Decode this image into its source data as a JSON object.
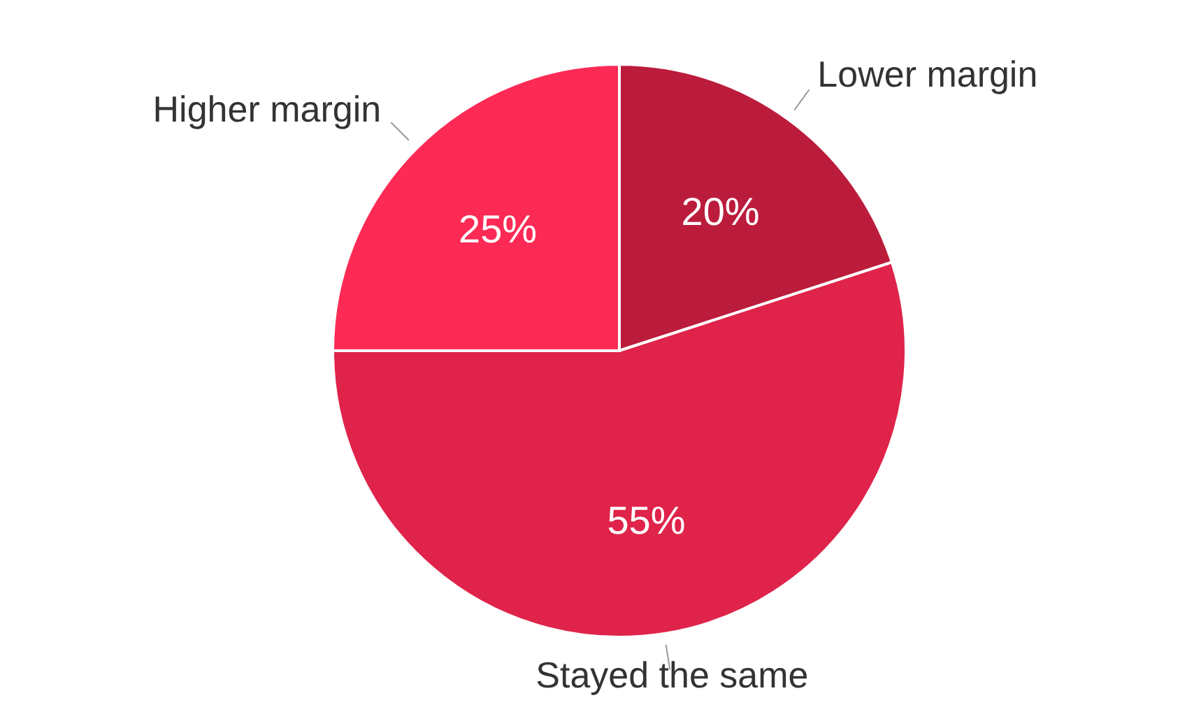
{
  "chart_data": {
    "type": "pie",
    "categories": [
      "Lower margin",
      "Stayed the same",
      "Higher margin"
    ],
    "values": [
      20,
      55,
      25
    ],
    "colors": [
      "#bc1c3c",
      "#e0234a",
      "#fc2a55"
    ],
    "value_labels": [
      "20%",
      "55%",
      "25%"
    ]
  }
}
